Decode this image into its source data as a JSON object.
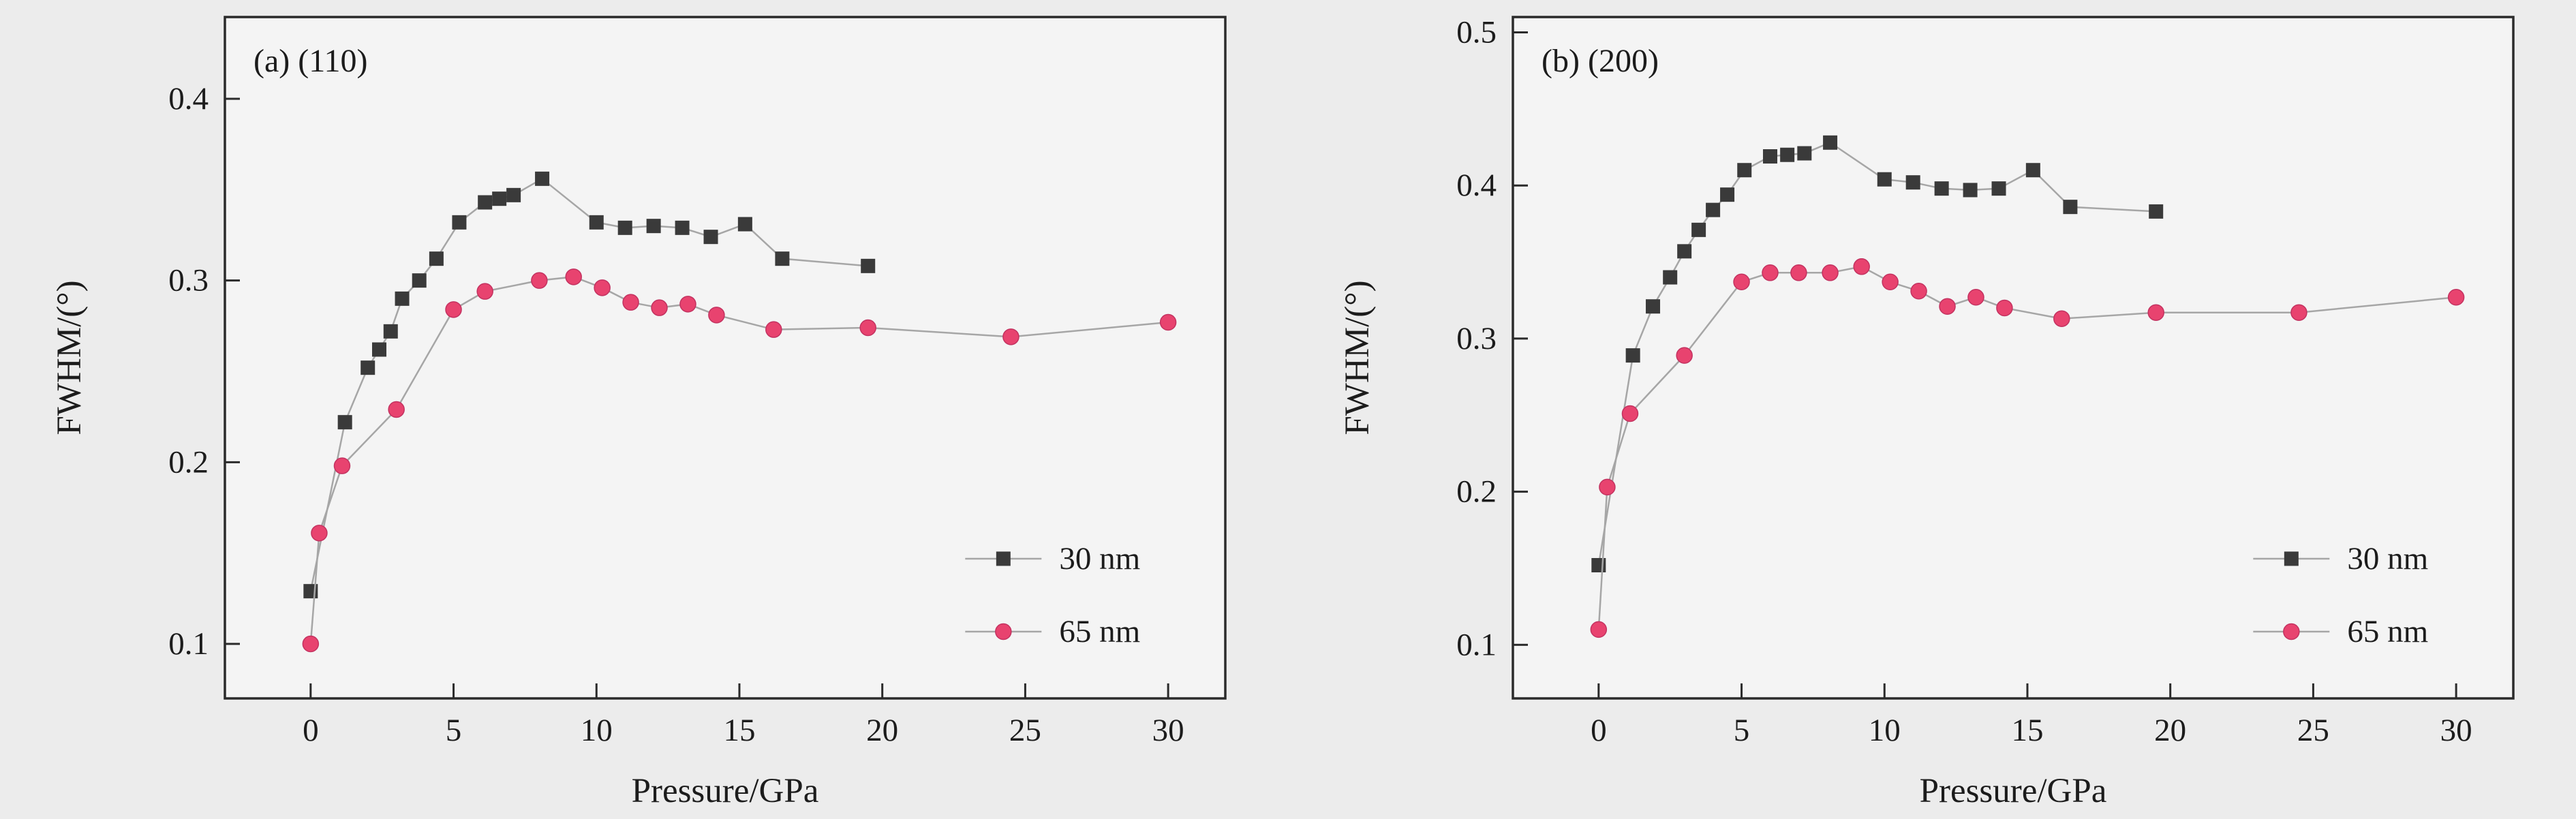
{
  "figure": {
    "background": "#ececec"
  },
  "chart_data": [
    {
      "type": "scatter",
      "panel_label": "(a) (110)",
      "xlabel": "Pressure/GPa",
      "ylabel": "FWHM/(°)",
      "xlim": [
        -3,
        32
      ],
      "ylim": [
        0.07,
        0.445
      ],
      "xticks": [
        0,
        5,
        10,
        15,
        20,
        25,
        30
      ],
      "xtick_labels": [
        "0",
        "5",
        "10",
        "15",
        "20",
        "25",
        "30"
      ],
      "yticks": [
        0.1,
        0.2,
        0.3,
        0.4
      ],
      "ytick_labels": [
        "0.1",
        "0.2",
        "0.3",
        "0.4"
      ],
      "grid": false,
      "legend_position": "inside lower right",
      "plot_bg": "#f4f4f4",
      "axis_color": "#2b2b2b",
      "line_color": "#a6a6a6",
      "series": [
        {
          "name": "30 nm",
          "marker": "square",
          "color": "#3a3a3a",
          "points": [
            [
              0,
              0.129
            ],
            [
              1.2,
              0.222
            ],
            [
              2.0,
              0.252
            ],
            [
              2.4,
              0.262
            ],
            [
              2.8,
              0.272
            ],
            [
              3.2,
              0.29
            ],
            [
              3.8,
              0.3
            ],
            [
              4.4,
              0.312
            ],
            [
              5.2,
              0.332
            ],
            [
              6.1,
              0.343
            ],
            [
              6.6,
              0.345
            ],
            [
              7.1,
              0.347
            ],
            [
              8.1,
              0.356
            ],
            [
              10.0,
              0.332
            ],
            [
              11.0,
              0.329
            ],
            [
              12.0,
              0.33
            ],
            [
              13.0,
              0.329
            ],
            [
              14.0,
              0.324
            ],
            [
              15.2,
              0.331
            ],
            [
              16.5,
              0.312
            ],
            [
              19.5,
              0.308
            ]
          ]
        },
        {
          "name": "65 nm",
          "marker": "circle",
          "color": "#e8436f",
          "points": [
            [
              0,
              0.1
            ],
            [
              0.3,
              0.161
            ],
            [
              1.1,
              0.198
            ],
            [
              3.0,
              0.229
            ],
            [
              5.0,
              0.284
            ],
            [
              6.1,
              0.294
            ],
            [
              8.0,
              0.3
            ],
            [
              9.2,
              0.302
            ],
            [
              10.2,
              0.296
            ],
            [
              11.2,
              0.288
            ],
            [
              12.2,
              0.285
            ],
            [
              13.2,
              0.287
            ],
            [
              14.2,
              0.281
            ],
            [
              16.2,
              0.273
            ],
            [
              19.5,
              0.274
            ],
            [
              24.5,
              0.269
            ],
            [
              30.0,
              0.277
            ]
          ]
        }
      ]
    },
    {
      "type": "scatter",
      "panel_label": "(b) (200)",
      "xlabel": "Pressure/GPa",
      "ylabel": "FWHM/(°)",
      "xlim": [
        -3,
        32
      ],
      "ylim": [
        0.065,
        0.51
      ],
      "xticks": [
        0,
        5,
        10,
        15,
        20,
        25,
        30
      ],
      "xtick_labels": [
        "0",
        "5",
        "10",
        "15",
        "20",
        "25",
        "30"
      ],
      "yticks": [
        0.1,
        0.2,
        0.3,
        0.4,
        0.5
      ],
      "ytick_labels": [
        "0.1",
        "0.2",
        "0.3",
        "0.4",
        "0.5"
      ],
      "grid": false,
      "legend_position": "inside lower right",
      "plot_bg": "#f4f4f4",
      "axis_color": "#2b2b2b",
      "line_color": "#a6a6a6",
      "series": [
        {
          "name": "30 nm",
          "marker": "square",
          "color": "#3a3a3a",
          "points": [
            [
              0,
              0.152
            ],
            [
              1.2,
              0.289
            ],
            [
              1.9,
              0.321
            ],
            [
              2.5,
              0.34
            ],
            [
              3.0,
              0.357
            ],
            [
              3.5,
              0.371
            ],
            [
              4.0,
              0.384
            ],
            [
              4.5,
              0.394
            ],
            [
              5.1,
              0.41
            ],
            [
              6.0,
              0.419
            ],
            [
              6.6,
              0.42
            ],
            [
              7.2,
              0.421
            ],
            [
              8.1,
              0.428
            ],
            [
              10.0,
              0.404
            ],
            [
              11.0,
              0.402
            ],
            [
              12.0,
              0.398
            ],
            [
              13.0,
              0.397
            ],
            [
              14.0,
              0.398
            ],
            [
              15.2,
              0.41
            ],
            [
              16.5,
              0.386
            ],
            [
              19.5,
              0.383
            ]
          ]
        },
        {
          "name": "65 nm",
          "marker": "circle",
          "color": "#e8436f",
          "points": [
            [
              0,
              0.11
            ],
            [
              0.3,
              0.203
            ],
            [
              1.1,
              0.251
            ],
            [
              3.0,
              0.289
            ],
            [
              5.0,
              0.337
            ],
            [
              6.0,
              0.343
            ],
            [
              7.0,
              0.343
            ],
            [
              8.1,
              0.343
            ],
            [
              9.2,
              0.347
            ],
            [
              10.2,
              0.337
            ],
            [
              11.2,
              0.331
            ],
            [
              12.2,
              0.321
            ],
            [
              13.2,
              0.327
            ],
            [
              14.2,
              0.32
            ],
            [
              16.2,
              0.313
            ],
            [
              19.5,
              0.317
            ],
            [
              24.5,
              0.317
            ],
            [
              30.0,
              0.327
            ]
          ]
        }
      ]
    }
  ]
}
